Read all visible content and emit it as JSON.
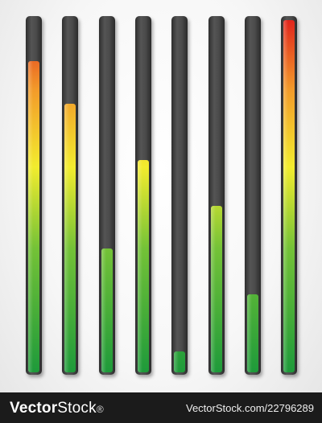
{
  "meters": [
    {
      "level": 0.88
    },
    {
      "level": 0.76
    },
    {
      "level": 0.35
    },
    {
      "level": 0.6
    },
    {
      "level": 0.06
    },
    {
      "level": 0.47
    },
    {
      "level": 0.22
    },
    {
      "level": 0.995
    }
  ],
  "colors": {
    "track": "#3c3c3c",
    "gradient_stops": [
      "#1e9a3a",
      "#74c237",
      "#f2ec2e",
      "#f29a2a",
      "#e0221c"
    ],
    "footer_bg": "#1b1b1b"
  },
  "footer": {
    "brand_bold": "Vector",
    "brand_regular": "Stock",
    "brand_suffix": "®",
    "url": "VectorStock.com/22796289"
  }
}
